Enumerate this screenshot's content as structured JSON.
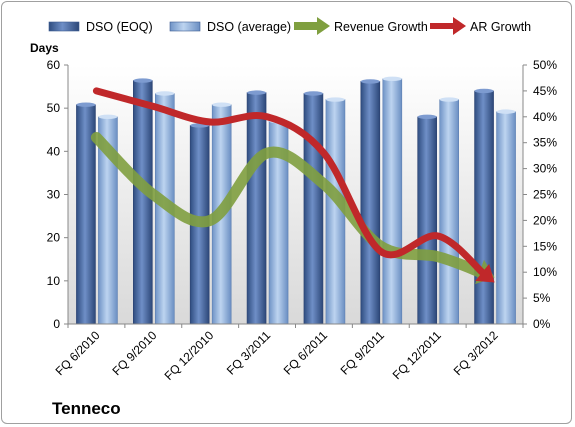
{
  "company": "Tenneco",
  "chart_data": {
    "type": "bar",
    "categories": [
      "FQ 6/2010",
      "FQ 9/2010",
      "FQ 12/2010",
      "FQ 3/2011",
      "FQ 6/2011",
      "FQ 9/2011",
      "FQ 12/2011",
      "FQ 3/2012"
    ],
    "series": [
      {
        "name": "DSO (EOQ)",
        "kind": "bar",
        "axis": "left",
        "color": "#4a6aa5",
        "values": [
          50.8,
          56.4,
          46.0,
          53.6,
          53.4,
          56.2,
          48.0,
          54.0
        ]
      },
      {
        "name": "DSO (average)",
        "kind": "bar",
        "axis": "left",
        "color": "#95b8e3",
        "values": [
          48.0,
          53.4,
          50.8,
          47.0,
          52.0,
          56.8,
          52.0,
          49.2
        ]
      },
      {
        "name": "Revenue Growth",
        "kind": "line-arrow",
        "axis": "right",
        "color": "#7f9f3f",
        "values": [
          0.36,
          0.25,
          0.2,
          0.33,
          0.27,
          0.15,
          0.13,
          0.09
        ]
      },
      {
        "name": "AR Growth",
        "kind": "line-arrow",
        "axis": "right",
        "color": "#c0282a",
        "values": [
          0.45,
          0.42,
          0.39,
          0.4,
          0.33,
          0.14,
          0.17,
          0.08
        ]
      }
    ],
    "ylabel": "Days",
    "ylim": [
      0,
      60
    ],
    "yticks": [
      "0",
      "10",
      "20",
      "30",
      "40",
      "50",
      "60"
    ],
    "y2lim": [
      0,
      0.5
    ],
    "y2ticks": [
      "0%",
      "5%",
      "10%",
      "15%",
      "20%",
      "25%",
      "30%",
      "35%",
      "40%",
      "45%",
      "50%"
    ],
    "legend_position": "top",
    "grid": false
  }
}
